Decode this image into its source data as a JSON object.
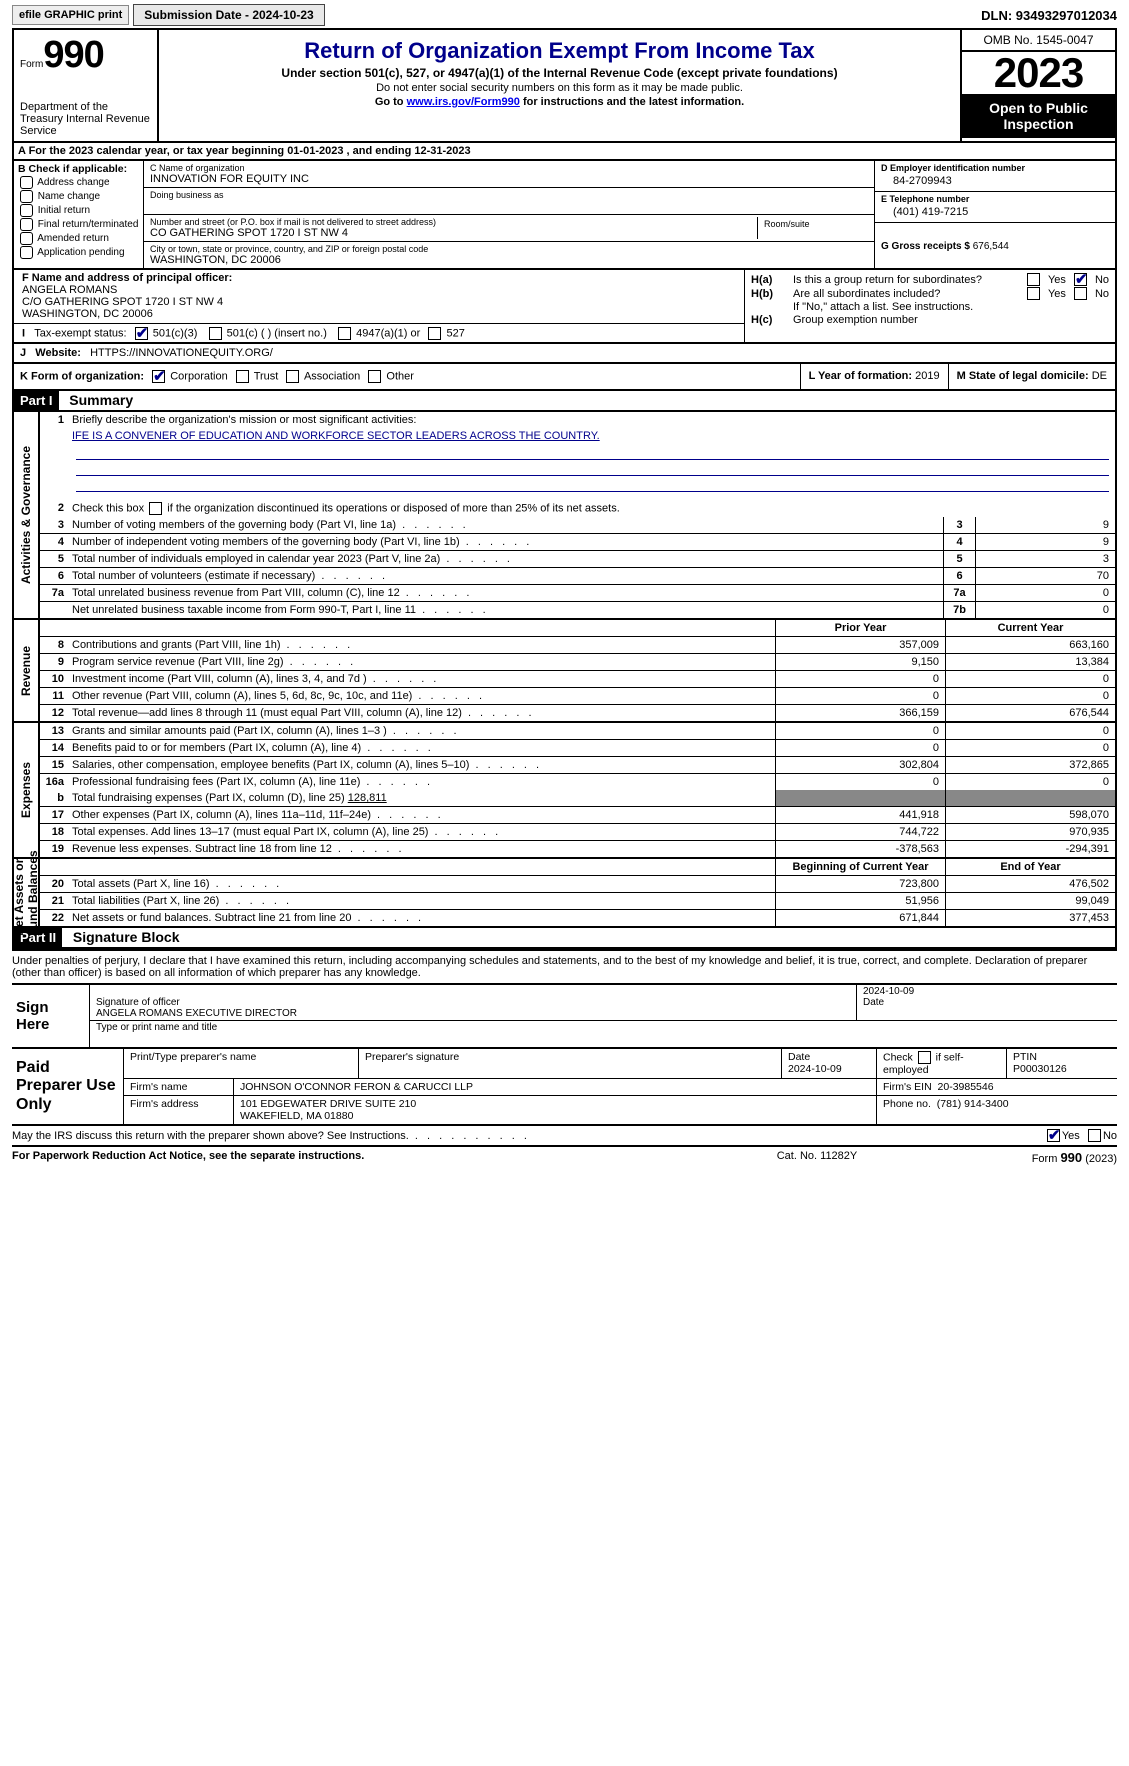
{
  "top": {
    "efile": "efile GRAPHIC print",
    "submission_label": "Submission Date - 2024-10-23",
    "dln_label": "DLN: 93493297012034"
  },
  "header": {
    "form_prefix": "Form",
    "form_number": "990",
    "dept": "Department of the Treasury Internal Revenue Service",
    "title": "Return of Organization Exempt From Income Tax",
    "subtitle": "Under section 501(c), 527, or 4947(a)(1) of the Internal Revenue Code (except private foundations)",
    "ssn_note": "Do not enter social security numbers on this form as it may be made public.",
    "goto": "Go to ",
    "goto_link": "www.irs.gov/Form990",
    "goto_rest": " for instructions and the latest information.",
    "omb": "OMB No. 1545-0047",
    "year": "2023",
    "open": "Open to Public Inspection"
  },
  "line_a": "A For the 2023 calendar year, or tax year beginning 01-01-2023   , and ending 12-31-2023",
  "section_b": {
    "hdg": "B Check if applicable:",
    "opts": [
      "Address change",
      "Name change",
      "Initial return",
      "Final return/terminated",
      "Amended return",
      "Application pending"
    ]
  },
  "section_c": {
    "name_lbl": "C Name of organization",
    "name": "INNOVATION FOR EQUITY INC",
    "dba_lbl": "Doing business as",
    "addr_lbl": "Number and street (or P.O. box if mail is not delivered to street address)",
    "addr": "CO GATHERING SPOT 1720 I ST NW 4",
    "room_lbl": "Room/suite",
    "city_lbl": "City or town, state or province, country, and ZIP or foreign postal code",
    "city": "WASHINGTON, DC  20006"
  },
  "section_d": {
    "ein_lbl": "D Employer identification number",
    "ein": "84-2709943",
    "tel_lbl": "E Telephone number",
    "tel": "(401) 419-7215",
    "gross_lbl": "G Gross receipts $",
    "gross": "676,544"
  },
  "section_f": {
    "lbl": "F  Name and address of principal officer:",
    "l1": "ANGELA ROMANS",
    "l2": "C/O GATHERING SPOT 1720 I ST NW 4",
    "l3": "WASHINGTON, DC  20006"
  },
  "section_h": {
    "ha": "Is this a group return for subordinates?",
    "hb": "Are all subordinates included?",
    "note": "If \"No,\" attach a list. See instructions.",
    "hc": "Group exemption number"
  },
  "tax_status": {
    "lbl": "Tax-exempt status:",
    "o1": "501(c)(3)",
    "o2": "501(c) (  ) (insert no.)",
    "o3": "4947(a)(1) or",
    "o4": "527"
  },
  "website": {
    "lbl": "Website:",
    "val": "HTTPS://INNOVATIONEQUITY.ORG/"
  },
  "section_k": {
    "lbl": "K Form of organization:",
    "o1": "Corporation",
    "o2": "Trust",
    "o3": "Association",
    "o4": "Other"
  },
  "section_l": {
    "lbl": "L Year of formation:",
    "val": "2019"
  },
  "section_m": {
    "lbl": "M State of legal domicile:",
    "val": "DE"
  },
  "part1": {
    "hdr": "Part I",
    "title": "Summary"
  },
  "mission": {
    "lbl": "Briefly describe the organization's mission or most significant activities:",
    "text": "IFE IS A CONVENER OF EDUCATION AND WORKFORCE SECTOR LEADERS ACROSS THE COUNTRY."
  },
  "line2": "Check this box      if the organization discontinued its operations or disposed of more than 25% of its net assets.",
  "gov_rows": [
    {
      "n": "3",
      "t": "Number of voting members of the governing body (Part VI, line 1a)",
      "c": "3",
      "v": "9"
    },
    {
      "n": "4",
      "t": "Number of independent voting members of the governing body (Part VI, line 1b)",
      "c": "4",
      "v": "9"
    },
    {
      "n": "5",
      "t": "Total number of individuals employed in calendar year 2023 (Part V, line 2a)",
      "c": "5",
      "v": "3"
    },
    {
      "n": "6",
      "t": "Total number of volunteers (estimate if necessary)",
      "c": "6",
      "v": "70"
    },
    {
      "n": "7a",
      "t": "Total unrelated business revenue from Part VIII, column (C), line 12",
      "c": "7a",
      "v": "0"
    },
    {
      "n": "",
      "t": "Net unrelated business taxable income from Form 990-T, Part I, line 11",
      "c": "7b",
      "v": "0"
    }
  ],
  "cols": {
    "prior": "Prior Year",
    "current": "Current Year",
    "begin": "Beginning of Current Year",
    "end": "End of Year"
  },
  "revenue": [
    {
      "n": "8",
      "t": "Contributions and grants (Part VIII, line 1h)",
      "p": "357,009",
      "q": "663,160"
    },
    {
      "n": "9",
      "t": "Program service revenue (Part VIII, line 2g)",
      "p": "9,150",
      "q": "13,384"
    },
    {
      "n": "10",
      "t": "Investment income (Part VIII, column (A), lines 3, 4, and 7d )",
      "p": "0",
      "q": "0"
    },
    {
      "n": "11",
      "t": "Other revenue (Part VIII, column (A), lines 5, 6d, 8c, 9c, 10c, and 11e)",
      "p": "0",
      "q": "0"
    },
    {
      "n": "12",
      "t": "Total revenue—add lines 8 through 11 (must equal Part VIII, column (A), line 12)",
      "p": "366,159",
      "q": "676,544"
    }
  ],
  "expenses": [
    {
      "n": "13",
      "t": "Grants and similar amounts paid (Part IX, column (A), lines 1–3 )",
      "p": "0",
      "q": "0"
    },
    {
      "n": "14",
      "t": "Benefits paid to or for members (Part IX, column (A), line 4)",
      "p": "0",
      "q": "0"
    },
    {
      "n": "15",
      "t": "Salaries, other compensation, employee benefits (Part IX, column (A), lines 5–10)",
      "p": "302,804",
      "q": "372,865"
    },
    {
      "n": "16a",
      "t": "Professional fundraising fees (Part IX, column (A), line 11e)",
      "p": "0",
      "q": "0"
    }
  ],
  "exp_b": {
    "n": "b",
    "t": "Total fundraising expenses (Part IX, column (D), line 25)",
    "v": "128,811"
  },
  "expenses2": [
    {
      "n": "17",
      "t": "Other expenses (Part IX, column (A), lines 11a–11d, 11f–24e)",
      "p": "441,918",
      "q": "598,070"
    },
    {
      "n": "18",
      "t": "Total expenses. Add lines 13–17 (must equal Part IX, column (A), line 25)",
      "p": "744,722",
      "q": "970,935"
    },
    {
      "n": "19",
      "t": "Revenue less expenses. Subtract line 18 from line 12",
      "p": "-378,563",
      "q": "-294,391"
    }
  ],
  "netassets": [
    {
      "n": "20",
      "t": "Total assets (Part X, line 16)",
      "p": "723,800",
      "q": "476,502"
    },
    {
      "n": "21",
      "t": "Total liabilities (Part X, line 26)",
      "p": "51,956",
      "q": "99,049"
    },
    {
      "n": "22",
      "t": "Net assets or fund balances. Subtract line 21 from line 20",
      "p": "671,844",
      "q": "377,453"
    }
  ],
  "part2": {
    "hdr": "Part II",
    "title": "Signature Block"
  },
  "decl": "Under penalties of perjury, I declare that I have examined this return, including accompanying schedules and statements, and to the best of my knowledge and belief, it is true, correct, and complete. Declaration of preparer (other than officer) is based on all information of which preparer has any knowledge.",
  "sign": {
    "here": "Sign Here",
    "sig_lbl": "Signature of officer",
    "date_lbl": "Date",
    "date": "2024-10-09",
    "name": "ANGELA ROMANS  EXECUTIVE DIRECTOR",
    "type_lbl": "Type or print name and title"
  },
  "paid": {
    "lbl": "Paid Preparer Use Only",
    "h1": "Print/Type preparer's name",
    "h2": "Preparer's signature",
    "h3_lbl": "Date",
    "h3": "2024-10-09",
    "h4": "Check        if self-employed",
    "h5_lbl": "PTIN",
    "h5": "P00030126",
    "firm_lbl": "Firm's name",
    "firm": "JOHNSON O'CONNOR FERON & CARUCCI LLP",
    "ein_lbl": "Firm's EIN",
    "ein": "20-3985546",
    "addr_lbl": "Firm's address",
    "addr1": "101 EDGEWATER DRIVE SUITE 210",
    "addr2": "WAKEFIELD, MA  01880",
    "phone_lbl": "Phone no.",
    "phone": "(781) 914-3400"
  },
  "discuss": "May the IRS discuss this return with the preparer shown above? See Instructions.",
  "foot": {
    "l": "For Paperwork Reduction Act Notice, see the separate instructions.",
    "m": "Cat. No. 11282Y",
    "r1": "Form ",
    "r2": "990",
    "r3": " (2023)"
  },
  "labels": {
    "yes": "Yes",
    "no": "No",
    "ha": "H(a)",
    "hb": "H(b)",
    "hc": "H(c)",
    "j": "J",
    "i": "I"
  }
}
